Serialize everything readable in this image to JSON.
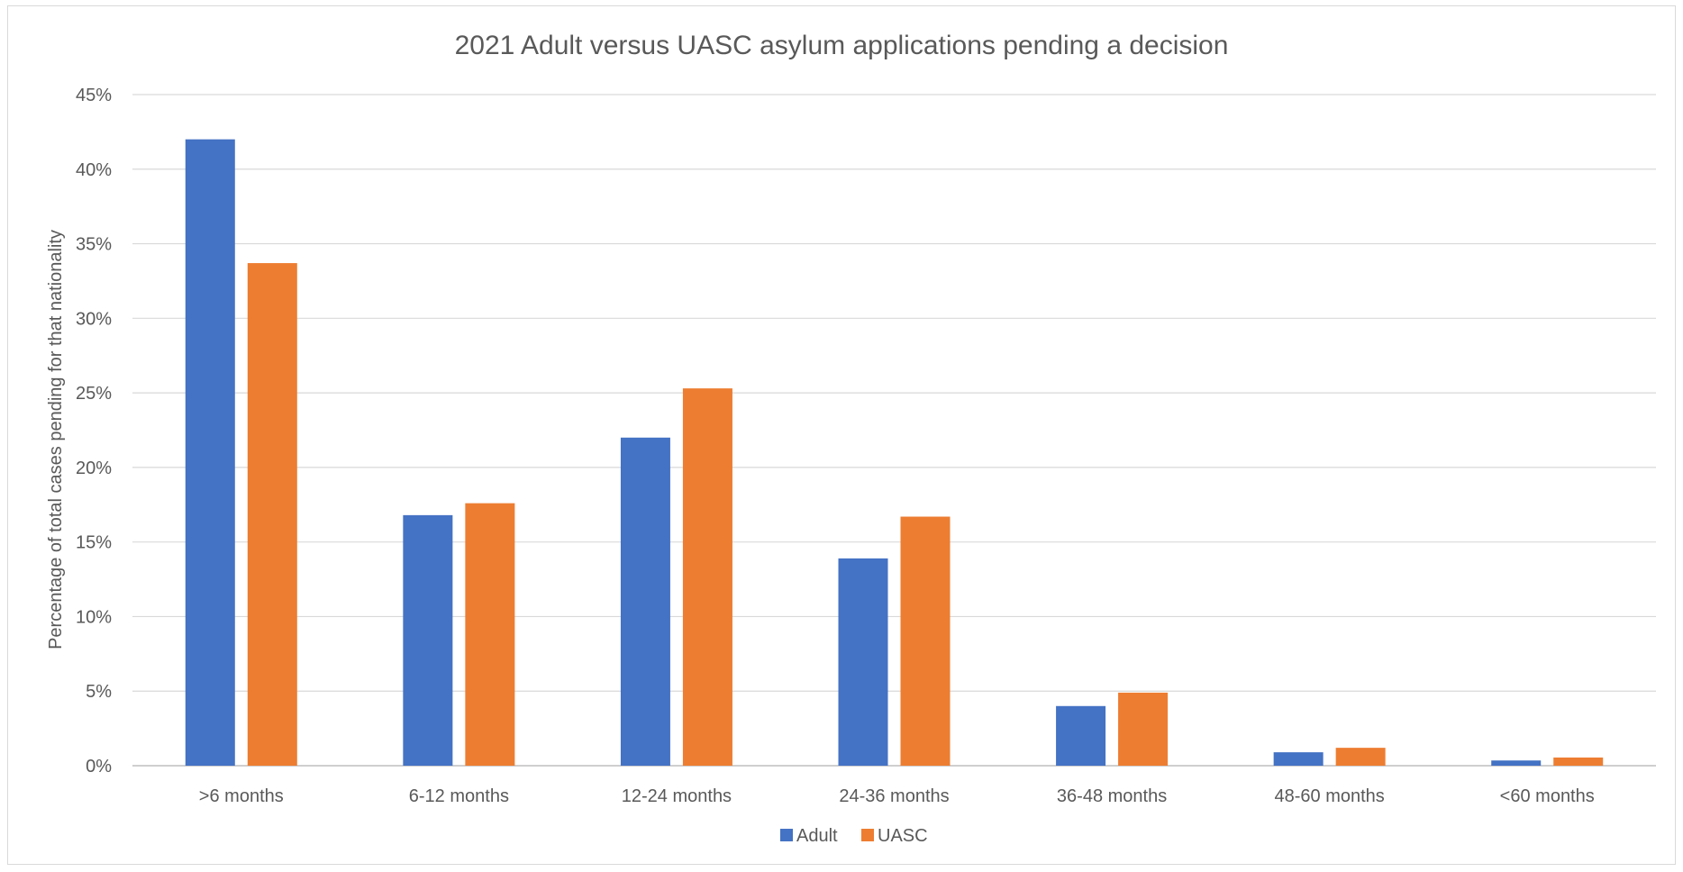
{
  "chart_data": {
    "type": "bar",
    "title": "2021 Adult versus UASC asylum applications pending a decision",
    "ylabel": "Percentage of total cases pending for that nationality",
    "xlabel": "",
    "categories": [
      ">6 months",
      "6-12 months",
      "12-24 months",
      "24-36 months",
      "36-48 months",
      "48-60 months",
      "<60 months"
    ],
    "series": [
      {
        "name": "Adult",
        "color": "#4472C4",
        "values": [
          42.0,
          16.8,
          22.0,
          13.9,
          4.0,
          0.9,
          0.35
        ]
      },
      {
        "name": "UASC",
        "color": "#ED7D31",
        "values": [
          33.7,
          17.6,
          25.3,
          16.7,
          4.9,
          1.2,
          0.55
        ]
      }
    ],
    "ylim": [
      0,
      45
    ],
    "yticks": [
      0,
      5,
      10,
      15,
      20,
      25,
      30,
      35,
      40,
      45
    ],
    "ytick_labels": [
      "0%",
      "5%",
      "10%",
      "15%",
      "20%",
      "25%",
      "30%",
      "35%",
      "40%",
      "45%"
    ],
    "grid": true,
    "legend_position": "bottom"
  }
}
